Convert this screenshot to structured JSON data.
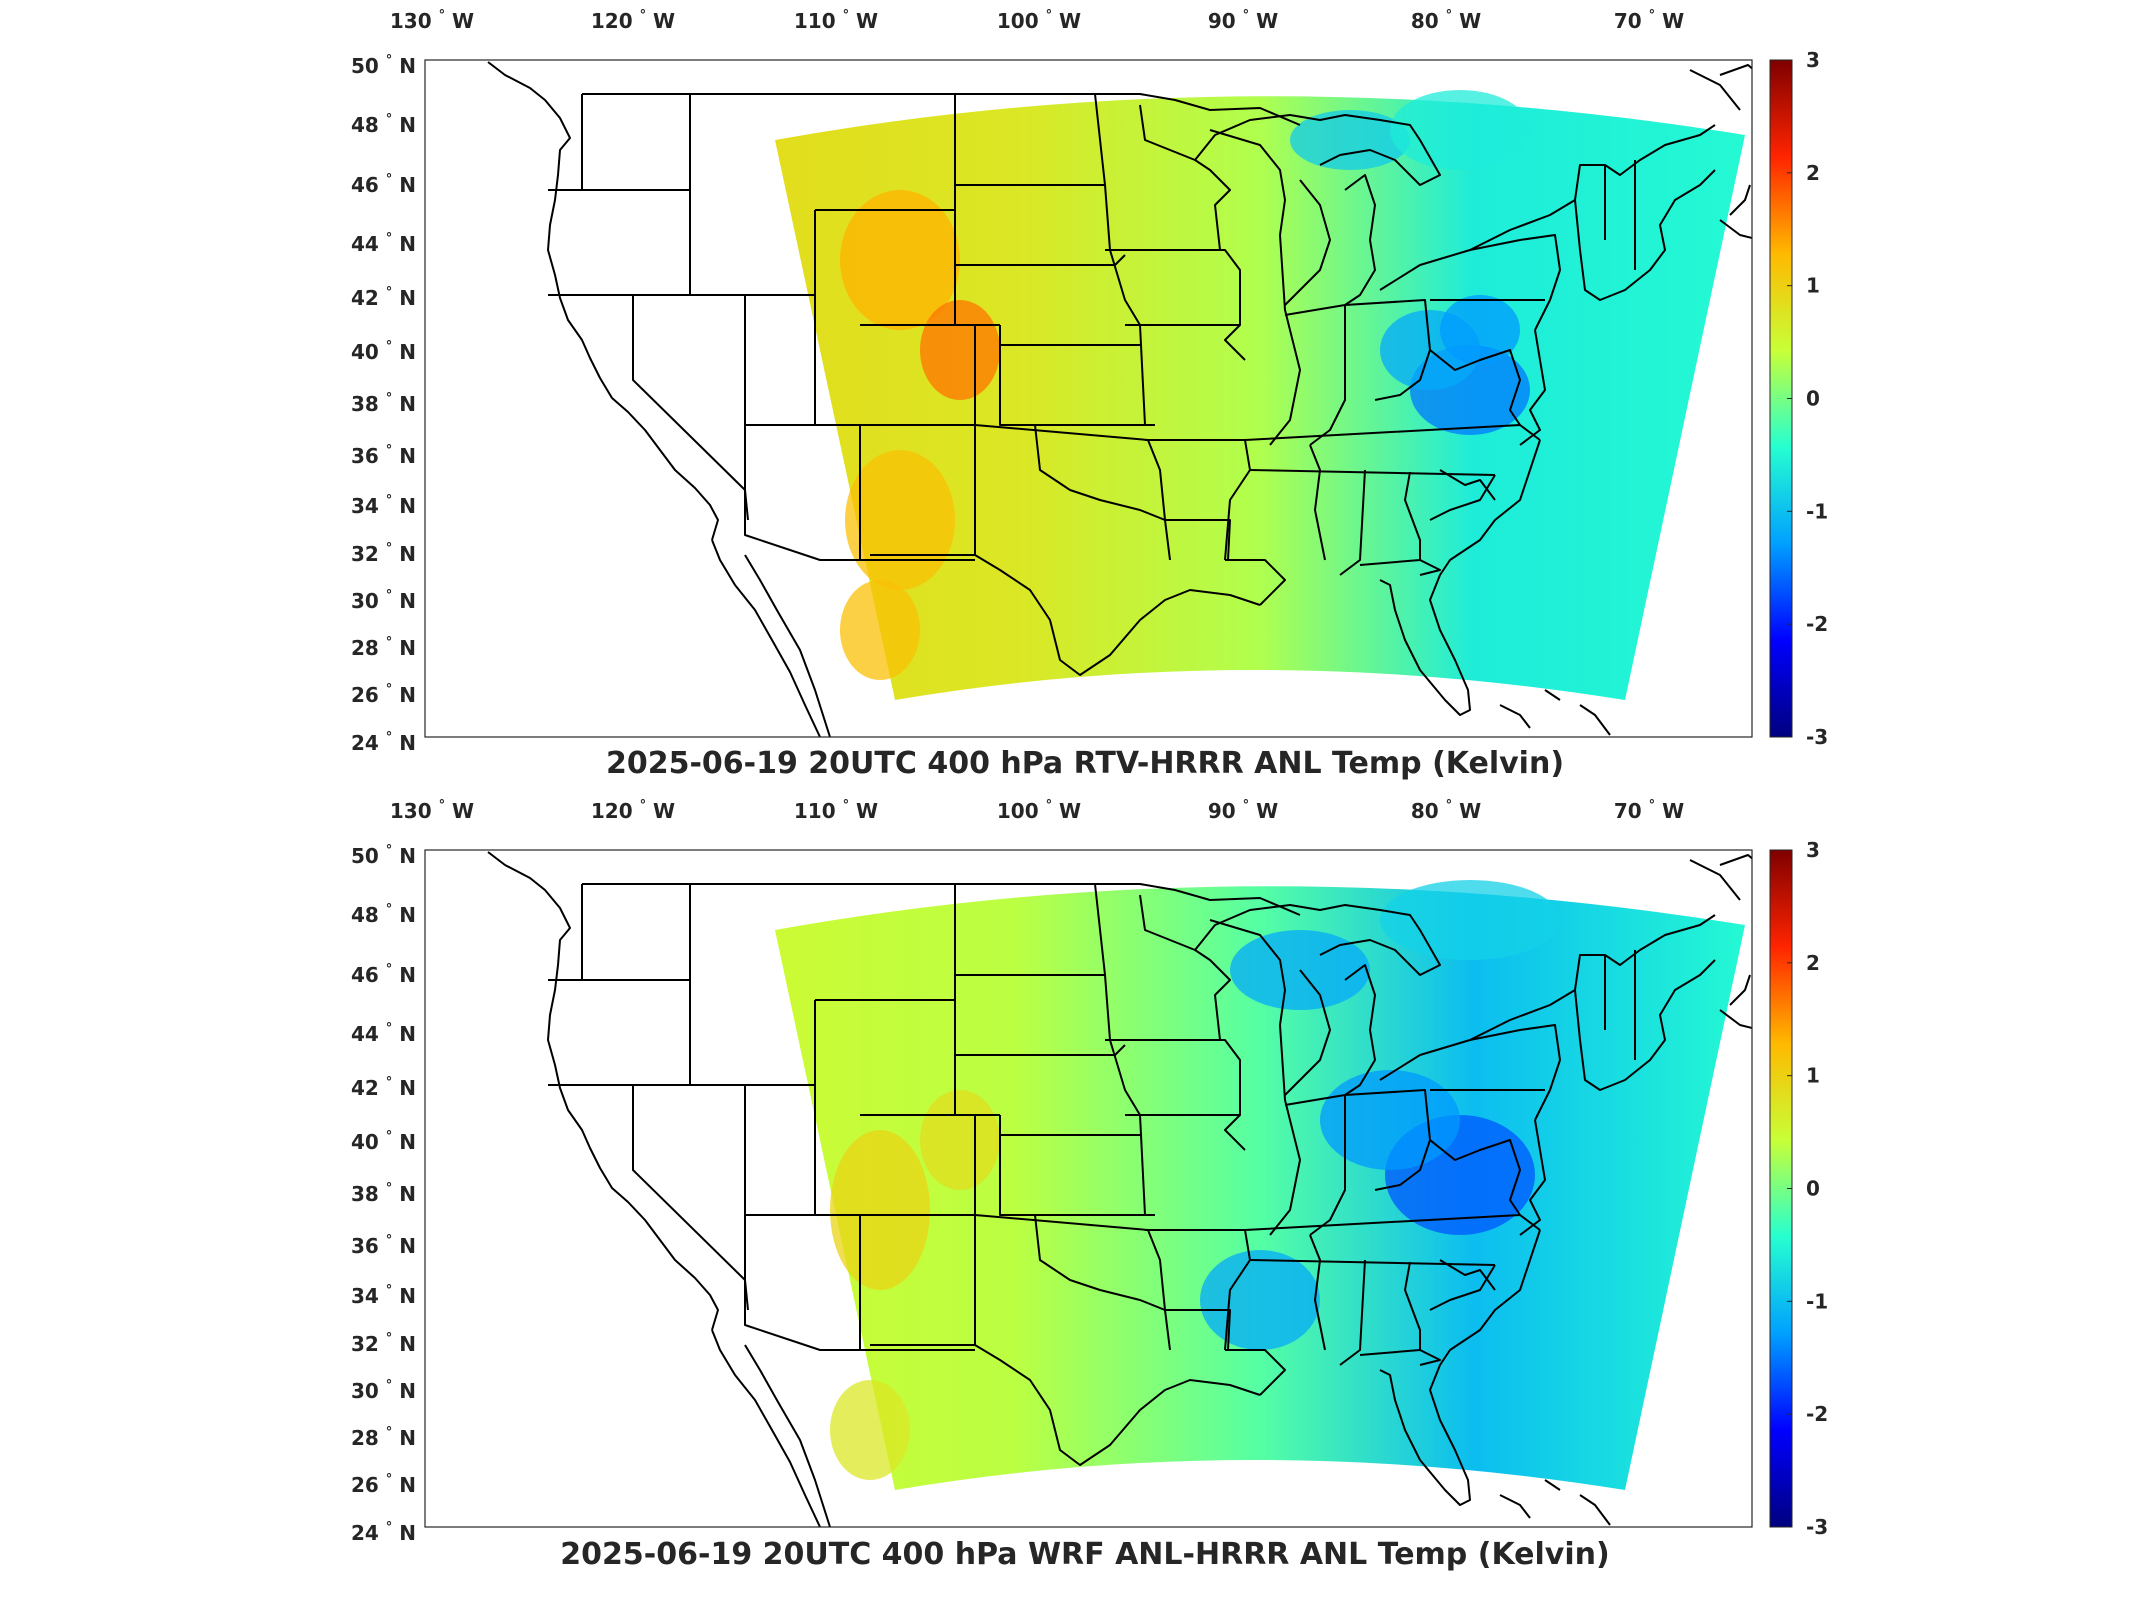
{
  "panels": [
    {
      "id": "rtv",
      "title": "2025-06-19 20UTC 400 hPa RTV-HRRR ANL Temp (Kelvin)",
      "field_tint": "warm-west"
    },
    {
      "id": "wrf",
      "title": "2025-06-19 20UTC 400 hPa WRF ANL-HRRR ANL Temp (Kelvin)",
      "field_tint": "cool-east"
    }
  ],
  "lon_ticks": [
    "130",
    "120",
    "110",
    "100",
    "90",
    "80",
    "70"
  ],
  "lon_suffix": "W",
  "lat_ticks": [
    "50",
    "48",
    "46",
    "44",
    "42",
    "40",
    "38",
    "36",
    "34",
    "32",
    "30",
    "28",
    "26",
    "24"
  ],
  "lat_suffix": "N",
  "degree_symbol": "°",
  "colorbar": {
    "ticks": [
      "3",
      "2",
      "1",
      "0",
      "-1",
      "-2",
      "-3"
    ],
    "range": [
      -3,
      3
    ],
    "colormap": "jet",
    "stops": [
      "#00007f",
      "#0000ff",
      "#00a0ff",
      "#26ffd0",
      "#c8ff37",
      "#ffb900",
      "#ff2400",
      "#7f0000"
    ]
  }
}
